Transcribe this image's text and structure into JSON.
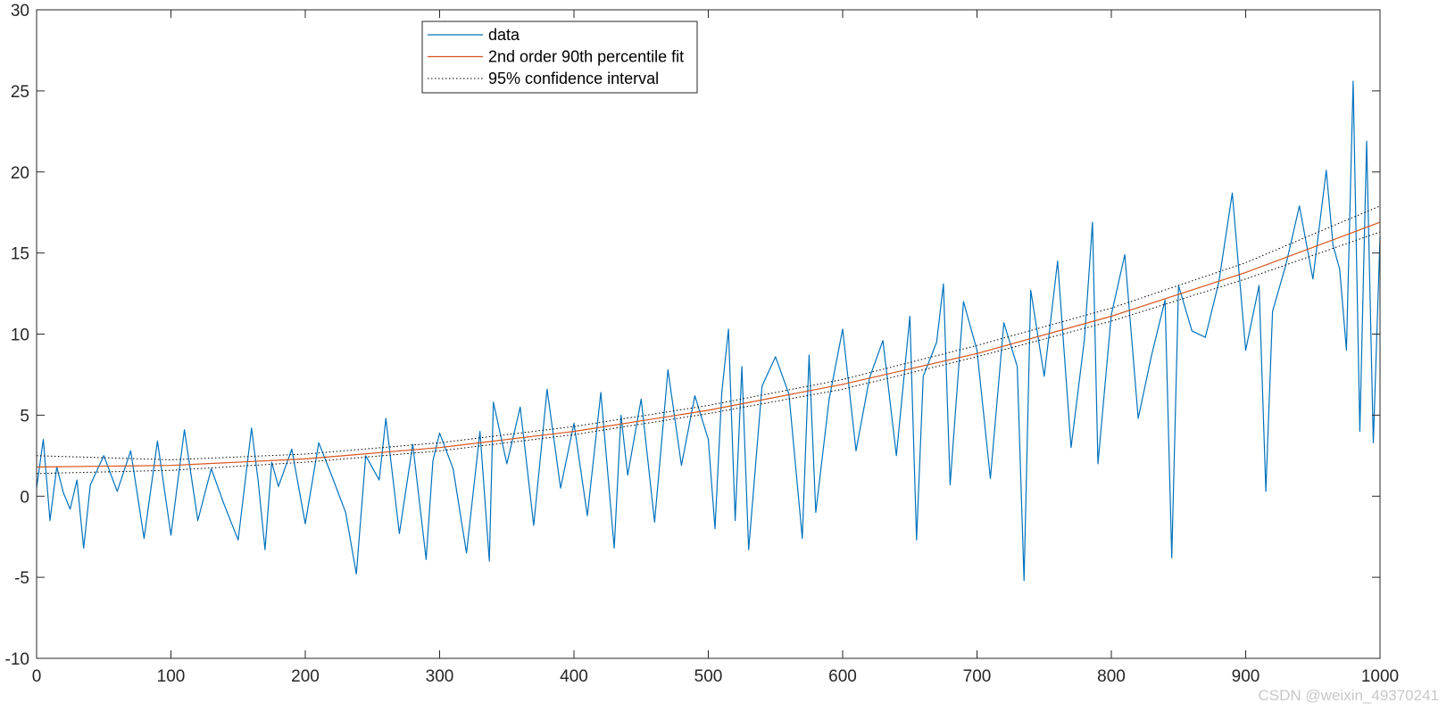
{
  "chart_data": {
    "type": "line",
    "title": "",
    "xlabel": "",
    "ylabel": "",
    "xlim": [
      0,
      1000
    ],
    "ylim": [
      -10,
      30
    ],
    "xticks": [
      0,
      100,
      200,
      300,
      400,
      500,
      600,
      700,
      800,
      900,
      1000
    ],
    "yticks": [
      -10,
      -5,
      0,
      5,
      10,
      15,
      20,
      25,
      30
    ],
    "xtick_labels": [
      "0",
      "100",
      "200",
      "300",
      "400",
      "500",
      "600",
      "700",
      "800",
      "900",
      "1000"
    ],
    "ytick_labels": [
      "-10",
      "-5",
      "0",
      "5",
      "10",
      "15",
      "20",
      "25",
      "30"
    ],
    "grid": false,
    "legend_position": "top-center",
    "series": [
      {
        "name": "data",
        "color": "#0072BD",
        "style": "solid",
        "x": [
          0,
          5,
          10,
          15,
          20,
          25,
          30,
          35,
          40,
          50,
          60,
          70,
          80,
          90,
          100,
          110,
          120,
          130,
          140,
          150,
          160,
          165,
          170,
          175,
          180,
          190,
          200,
          210,
          220,
          230,
          238,
          245,
          255,
          260,
          270,
          280,
          290,
          295,
          300,
          310,
          320,
          330,
          337,
          340,
          350,
          360,
          370,
          380,
          390,
          400,
          410,
          420,
          430,
          435,
          440,
          450,
          460,
          470,
          480,
          490,
          500,
          505,
          510,
          515,
          520,
          525,
          530,
          540,
          550,
          560,
          570,
          575,
          580,
          590,
          600,
          610,
          620,
          630,
          640,
          650,
          655,
          660,
          670,
          675,
          680,
          690,
          700,
          710,
          720,
          730,
          735,
          740,
          750,
          760,
          770,
          780,
          786,
          790,
          800,
          810,
          820,
          830,
          840,
          845,
          850,
          860,
          870,
          880,
          890,
          900,
          910,
          915,
          920,
          930,
          940,
          950,
          960,
          965,
          970,
          975,
          980,
          985,
          990,
          995,
          1000
        ],
        "y": [
          0.5,
          3.5,
          -1.5,
          1.8,
          0.2,
          -0.8,
          1.0,
          -3.2,
          0.7,
          2.5,
          0.3,
          2.8,
          -2.6,
          3.4,
          -2.4,
          4.1,
          -1.5,
          1.7,
          -0.6,
          -2.7,
          4.2,
          0.9,
          -3.3,
          2.1,
          0.6,
          2.9,
          -1.7,
          3.3,
          1.2,
          -1.0,
          -4.8,
          2.5,
          1.0,
          4.8,
          -2.3,
          3.2,
          -3.9,
          2.2,
          3.9,
          1.7,
          -3.5,
          4.0,
          -4.0,
          5.8,
          2.0,
          5.5,
          -1.8,
          6.6,
          0.5,
          4.5,
          -1.2,
          6.4,
          -3.2,
          5.0,
          1.3,
          6.0,
          -1.6,
          7.8,
          1.9,
          6.2,
          3.5,
          -2.0,
          6.4,
          10.3,
          -1.5,
          8.0,
          -3.3,
          6.8,
          8.6,
          6.3,
          -2.6,
          8.7,
          -1.0,
          6.0,
          10.3,
          2.8,
          7.3,
          9.6,
          2.5,
          11.1,
          -2.7,
          7.4,
          9.5,
          13.1,
          0.7,
          12.0,
          9.0,
          1.1,
          10.7,
          8.0,
          -5.2,
          12.7,
          7.4,
          14.5,
          3.0,
          9.7,
          16.9,
          2.0,
          11.2,
          14.9,
          4.8,
          8.7,
          12.1,
          -3.8,
          13.0,
          10.2,
          9.8,
          13.2,
          18.7,
          9.0,
          13.0,
          0.3,
          11.4,
          14.3,
          17.9,
          13.4,
          20.1,
          15.5,
          14.0,
          9.0,
          25.6,
          4.0,
          21.9,
          3.3,
          16.0
        ]
      },
      {
        "name": "2nd order 90th percentile fit",
        "color": "#D95319",
        "style": "solid",
        "x": [
          0,
          100,
          200,
          300,
          400,
          500,
          600,
          700,
          800,
          900,
          1000
        ],
        "y": [
          1.8,
          1.9,
          2.3,
          3.0,
          4.0,
          5.3,
          6.9,
          8.8,
          11.1,
          13.8,
          16.9
        ]
      },
      {
        "name": "95% confidence interval",
        "color": "#000000",
        "style": "dotted",
        "x": [
          0,
          100,
          200,
          300,
          400,
          500,
          600,
          700,
          800,
          900,
          1000
        ],
        "y": [
          2.5,
          2.25,
          2.6,
          3.3,
          4.3,
          5.6,
          7.2,
          9.3,
          11.6,
          14.4,
          17.9
        ]
      },
      {
        "name": "",
        "color": "#000000",
        "style": "dotted",
        "x": [
          0,
          100,
          200,
          300,
          400,
          500,
          600,
          700,
          800,
          900,
          1000
        ],
        "y": [
          1.4,
          1.6,
          2.1,
          2.8,
          3.8,
          5.1,
          6.6,
          8.6,
          10.8,
          13.4,
          16.3
        ]
      }
    ],
    "legend": [
      "data",
      "2nd order 90th percentile fit",
      "95% confidence interval"
    ]
  },
  "watermark": "CSDN @weixin_49370241"
}
